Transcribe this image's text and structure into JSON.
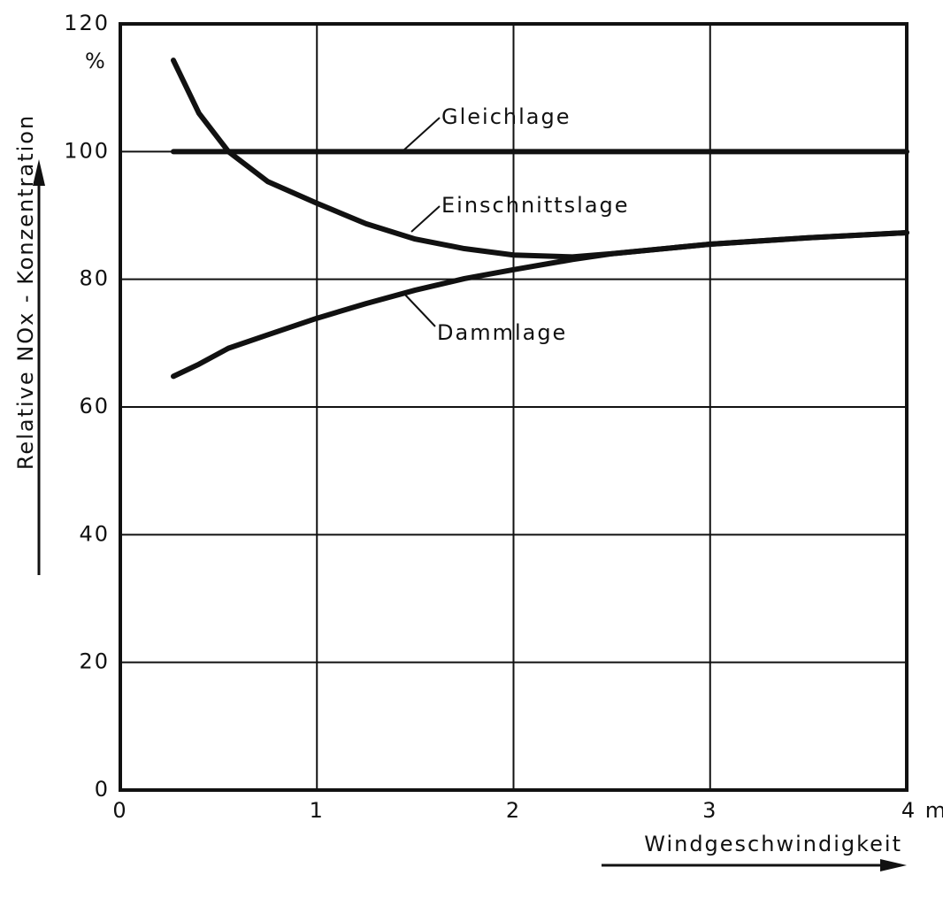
{
  "chart_data": {
    "type": "line",
    "ylabel": "Relative NOx - Konzentration",
    "yunit": "%",
    "xlabel": "Windgeschwindigkeit",
    "x": [
      0.27,
      0.4,
      0.55,
      0.75,
      1,
      1.25,
      1.5,
      1.75,
      2,
      2.3,
      2.5,
      3,
      3.5,
      4
    ],
    "series": [
      {
        "name": "Gleichlage",
        "color": "#111111",
        "values": [
          100,
          100,
          100,
          100,
          100,
          100,
          100,
          100,
          100,
          100,
          100,
          100,
          100,
          100
        ]
      },
      {
        "name": "Einschnittslage",
        "color": "#111111",
        "values": [
          114.3,
          106,
          100,
          95.3,
          91.9,
          88.7,
          86.3,
          84.8,
          83.8,
          83.5,
          84,
          85.5,
          86.5,
          87.3
        ]
      },
      {
        "name": "Dammlage",
        "color": "#111111",
        "values": [
          64.8,
          66.7,
          69.2,
          71.3,
          73.9,
          76.2,
          78.3,
          80.1,
          81.5,
          83.1,
          84,
          85.5,
          86.5,
          87.3
        ]
      }
    ],
    "xlim": [
      0,
      4
    ],
    "xticks": [
      0,
      1,
      2,
      3,
      {
        "value": 4,
        "label": "4 m"
      }
    ],
    "ylim": [
      0,
      120
    ],
    "yticks": [
      0,
      20,
      40,
      60,
      80,
      100,
      120
    ],
    "grid": true
  }
}
